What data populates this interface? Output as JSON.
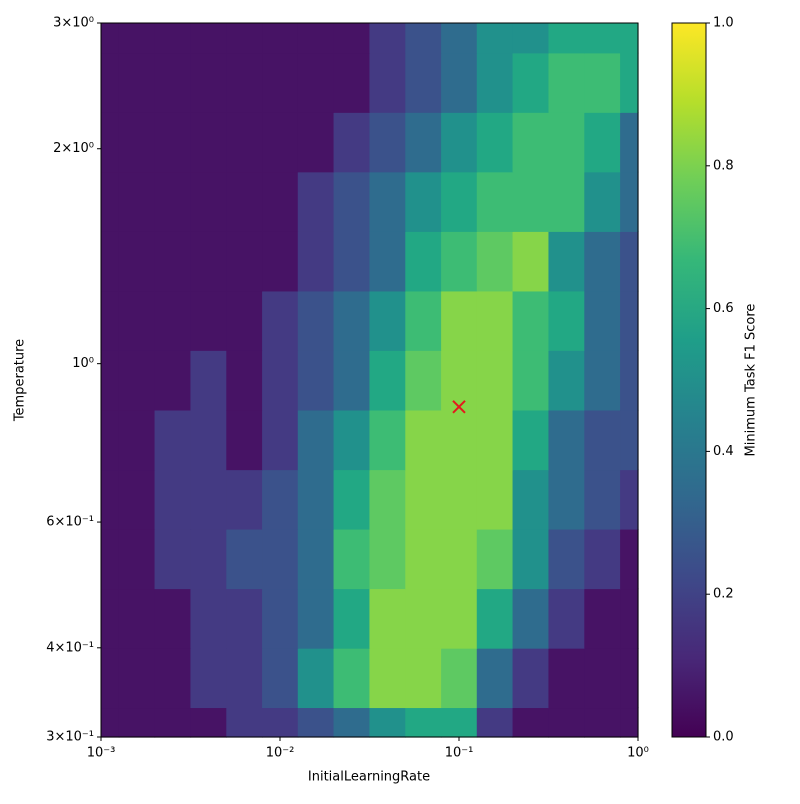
{
  "chart_data": {
    "type": "contourf",
    "xlabel": "InitialLearningRate",
    "ylabel": "Temperature",
    "colorbar_label": "Minimum Task F1 Score",
    "xscale": "log",
    "yscale": "log",
    "xlim": [
      0.001,
      1
    ],
    "ylim": [
      0.3,
      3
    ],
    "xticks": [
      {
        "value": 0.001,
        "label": "10⁻³"
      },
      {
        "value": 0.01,
        "label": "10⁻²"
      },
      {
        "value": 0.1,
        "label": "10⁻¹"
      },
      {
        "value": 1,
        "label": "10⁰"
      }
    ],
    "yticks": [
      {
        "value": 0.3,
        "label": "3×10⁻¹"
      },
      {
        "value": 0.4,
        "label": "4×10⁻¹"
      },
      {
        "value": 0.6,
        "label": "6×10⁻¹"
      },
      {
        "value": 1,
        "label": "10⁰"
      },
      {
        "value": 2,
        "label": "2×10⁰"
      },
      {
        "value": 3,
        "label": "3×10⁰"
      }
    ],
    "x": [
      0.001,
      0.00158,
      0.00251,
      0.00398,
      0.00631,
      0.01,
      0.0158,
      0.0251,
      0.0398,
      0.0631,
      0.1,
      0.158,
      0.251,
      0.398,
      0.631,
      1
    ],
    "y": [
      0.3,
      0.363,
      0.44,
      0.533,
      0.646,
      0.782,
      0.949,
      1.149,
      1.392,
      1.687,
      2.044,
      2.476,
      3
    ],
    "z": [
      [
        0.05,
        0.05,
        0.05,
        0.05,
        0.15,
        0.15,
        0.25,
        0.35,
        0.45,
        0.55,
        0.55,
        0.15,
        0.05,
        0.05,
        0.05,
        0.05
      ],
      [
        0.05,
        0.05,
        0.05,
        0.15,
        0.15,
        0.25,
        0.45,
        0.65,
        0.85,
        0.85,
        0.75,
        0.35,
        0.15,
        0.05,
        0.05,
        0.05
      ],
      [
        0.05,
        0.05,
        0.05,
        0.15,
        0.15,
        0.25,
        0.35,
        0.55,
        0.85,
        0.85,
        0.85,
        0.55,
        0.35,
        0.15,
        0.05,
        0.05
      ],
      [
        0.05,
        0.05,
        0.15,
        0.15,
        0.25,
        0.25,
        0.35,
        0.65,
        0.75,
        0.85,
        0.85,
        0.75,
        0.45,
        0.25,
        0.15,
        0.05
      ],
      [
        0.05,
        0.05,
        0.15,
        0.15,
        0.15,
        0.25,
        0.35,
        0.55,
        0.75,
        0.85,
        0.85,
        0.85,
        0.45,
        0.35,
        0.25,
        0.15
      ],
      [
        0.05,
        0.05,
        0.15,
        0.15,
        0.05,
        0.15,
        0.35,
        0.45,
        0.65,
        0.85,
        0.85,
        0.85,
        0.55,
        0.35,
        0.25,
        0.25
      ],
      [
        0.05,
        0.05,
        0.05,
        0.15,
        0.05,
        0.15,
        0.25,
        0.35,
        0.55,
        0.75,
        0.85,
        0.85,
        0.65,
        0.45,
        0.35,
        0.25
      ],
      [
        0.05,
        0.05,
        0.05,
        0.05,
        0.05,
        0.15,
        0.25,
        0.35,
        0.45,
        0.65,
        0.85,
        0.85,
        0.65,
        0.55,
        0.35,
        0.25
      ],
      [
        0.05,
        0.05,
        0.05,
        0.05,
        0.05,
        0.05,
        0.15,
        0.25,
        0.35,
        0.55,
        0.65,
        0.75,
        0.85,
        0.45,
        0.35,
        0.25
      ],
      [
        0.05,
        0.05,
        0.05,
        0.05,
        0.05,
        0.05,
        0.15,
        0.25,
        0.35,
        0.45,
        0.55,
        0.65,
        0.65,
        0.65,
        0.45,
        0.35
      ],
      [
        0.05,
        0.05,
        0.05,
        0.05,
        0.05,
        0.05,
        0.05,
        0.15,
        0.25,
        0.35,
        0.45,
        0.55,
        0.65,
        0.65,
        0.55,
        0.35
      ],
      [
        0.05,
        0.05,
        0.05,
        0.05,
        0.05,
        0.05,
        0.05,
        0.05,
        0.15,
        0.25,
        0.35,
        0.45,
        0.55,
        0.65,
        0.65,
        0.55
      ],
      [
        0.05,
        0.05,
        0.05,
        0.05,
        0.05,
        0.05,
        0.05,
        0.05,
        0.15,
        0.25,
        0.35,
        0.45,
        0.45,
        0.55,
        0.55,
        0.55
      ]
    ],
    "levels": [
      0,
      0.1,
      0.2,
      0.3,
      0.4,
      0.5,
      0.6,
      0.7,
      0.8,
      0.9,
      1
    ],
    "colors": [
      "#471365",
      "#443a83",
      "#3b528b",
      "#2f6c8e",
      "#21918c",
      "#22a884",
      "#3dbc74",
      "#5ec962",
      "#86d549",
      "#c2df23"
    ],
    "colormap": [
      "#440154",
      "#482878",
      "#3e4989",
      "#31688e",
      "#26828e",
      "#1f9e89",
      "#35b779",
      "#6ece58",
      "#b5de2b",
      "#fde725"
    ],
    "clim": [
      0,
      1
    ],
    "cticks": [
      {
        "value": 0,
        "label": "0.0"
      },
      {
        "value": 0.2,
        "label": "0.2"
      },
      {
        "value": 0.4,
        "label": "0.4"
      },
      {
        "value": 0.6,
        "label": "0.6"
      },
      {
        "value": 0.8,
        "label": "0.8"
      },
      {
        "value": 1,
        "label": "1.0"
      }
    ],
    "marker": {
      "x": 0.1,
      "y": 0.87,
      "color": "#e31a1c"
    }
  }
}
